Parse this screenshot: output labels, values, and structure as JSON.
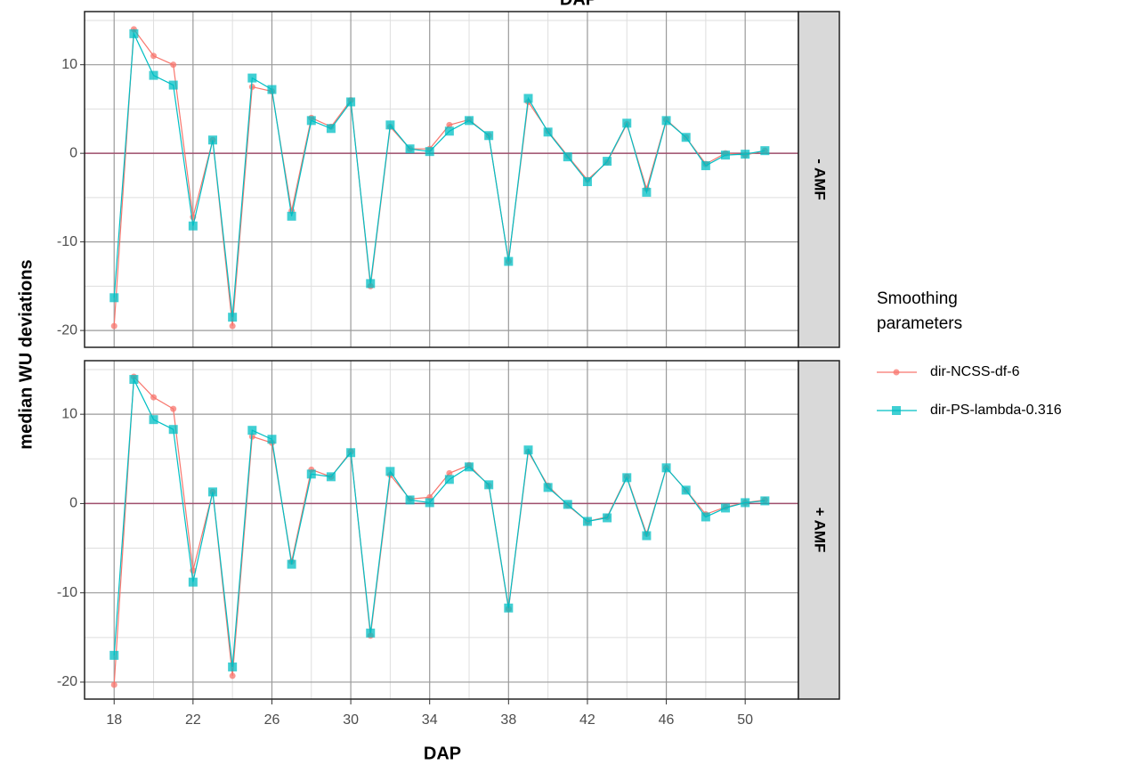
{
  "chart_data": {
    "type": "line",
    "title": "DAP",
    "x_label": "DAP",
    "y_label": "median WU deviations",
    "legend_title": "Smoothing parameters",
    "grid": true,
    "hline": 0,
    "hline_color": "#a0506e",
    "x": [
      18,
      19,
      20,
      21,
      22,
      23,
      24,
      25,
      26,
      27,
      28,
      29,
      30,
      31,
      32,
      33,
      34,
      35,
      36,
      37,
      38,
      39,
      40,
      41,
      42,
      43,
      44,
      45,
      46,
      47,
      48,
      49,
      50,
      51
    ],
    "xlim": [
      16.5,
      52.7
    ],
    "xticks": [
      18,
      22,
      26,
      30,
      34,
      38,
      42,
      46,
      50
    ],
    "ylim": [
      -21.9,
      16.0
    ],
    "yticks": [
      -20,
      -10,
      0,
      10
    ],
    "facets": [
      {
        "strip": "- AMF",
        "series": [
          {
            "name": "dir-NCSS-df-6",
            "color": "#F8766D",
            "marker": "circle",
            "values": [
              -19.5,
              14,
              11,
              10,
              -7.2,
              1.5,
              -19.5,
              7.5,
              7,
              -6.5,
              4,
              3,
              6,
              -15,
              3,
              0.5,
              0.5,
              3.2,
              3.8,
              2,
              -12.2,
              5.8,
              2.5,
              -0.3,
              -3,
              -1,
              3.3,
              -4,
              3.8,
              1.8,
              -1.2,
              0,
              -0.2,
              0.3
            ]
          },
          {
            "name": "dir-PS-lambda-0.316",
            "color": "#00BFC4",
            "marker": "square",
            "values": [
              -16.3,
              13.5,
              8.8,
              7.7,
              -8.2,
              1.5,
              -18.5,
              8.5,
              7.2,
              -7.1,
              3.7,
              2.8,
              5.8,
              -14.7,
              3.2,
              0.5,
              0.2,
              2.5,
              3.7,
              2.0,
              -12.2,
              6.2,
              2.4,
              -0.4,
              -3.2,
              -0.9,
              3.4,
              -4.4,
              3.7,
              1.8,
              -1.4,
              -0.2,
              -0.1,
              0.3
            ]
          }
        ]
      },
      {
        "strip": "+ AMF",
        "series": [
          {
            "name": "dir-NCSS-df-6",
            "color": "#F8766D",
            "marker": "circle",
            "values": [
              -20.3,
              14.2,
              11.9,
              10.6,
              -7.5,
              1.3,
              -19.3,
              7.5,
              6.8,
              -6.5,
              3.8,
              3.0,
              5.8,
              -14.8,
              3.2,
              0.5,
              0.7,
              3.4,
              4.3,
              2.0,
              -11.8,
              5.8,
              2.0,
              -0.2,
              -2.0,
              -1.5,
              3.0,
              -3.4,
              4.0,
              1.5,
              -1.2,
              -0.4,
              0.1,
              0.4
            ]
          },
          {
            "name": "dir-PS-lambda-0.316",
            "color": "#00BFC4",
            "marker": "square",
            "values": [
              -17.0,
              13.9,
              9.4,
              8.3,
              -8.8,
              1.3,
              -18.3,
              8.2,
              7.2,
              -6.8,
              3.3,
              3.0,
              5.7,
              -14.5,
              3.6,
              0.4,
              0.1,
              2.7,
              4.1,
              2.1,
              -11.7,
              6.0,
              1.8,
              -0.1,
              -2.0,
              -1.6,
              2.9,
              -3.6,
              4.0,
              1.5,
              -1.5,
              -0.5,
              0.1,
              0.3
            ]
          }
        ]
      }
    ]
  }
}
